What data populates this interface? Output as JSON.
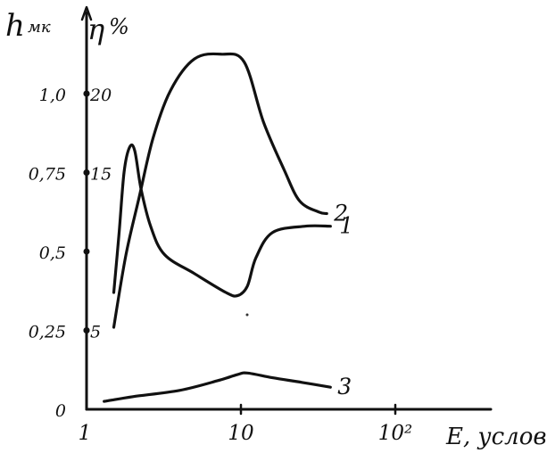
{
  "chart_data": {
    "type": "line",
    "x_scale": "log",
    "xlabel": "E, услов",
    "xlim": [
      1,
      200
    ],
    "x_ticks": [
      "1",
      "10",
      "10²"
    ],
    "left_axis": {
      "symbol": "h",
      "unit": "мк",
      "ylim": [
        0,
        1.25
      ],
      "ticks": [
        "0",
        "0,25",
        "0,5",
        "0,75",
        "1,0"
      ]
    },
    "right_axis": {
      "symbol": "η",
      "unit": "%",
      "ylim": [
        0,
        25
      ],
      "ticks": [
        "5",
        "15",
        "20"
      ]
    },
    "grid": false,
    "series": [
      {
        "name": "1",
        "axis": "h",
        "points": [
          [
            1.5,
            0.37
          ],
          [
            1.62,
            0.55
          ],
          [
            1.75,
            0.75
          ],
          [
            1.9,
            0.83
          ],
          [
            2.05,
            0.82
          ],
          [
            2.25,
            0.7
          ],
          [
            2.6,
            0.58
          ],
          [
            3.2,
            0.49
          ],
          [
            5,
            0.43
          ],
          [
            8,
            0.37
          ],
          [
            9.5,
            0.36
          ],
          [
            11,
            0.39
          ],
          [
            12.5,
            0.48
          ],
          [
            16,
            0.56
          ],
          [
            26,
            0.58
          ],
          [
            38,
            0.58
          ]
        ]
      },
      {
        "name": "2",
        "axis": "η",
        "points": [
          [
            1.5,
            5.2
          ],
          [
            1.8,
            9.8
          ],
          [
            2.2,
            13.5
          ],
          [
            2.7,
            17.2
          ],
          [
            3.5,
            20.2
          ],
          [
            5,
            22.2
          ],
          [
            7.5,
            22.5
          ],
          [
            10.5,
            22.0
          ],
          [
            14,
            18.2
          ],
          [
            19,
            15.2
          ],
          [
            24,
            13.2
          ],
          [
            32,
            12.5
          ],
          [
            36,
            12.4
          ]
        ]
      },
      {
        "name": "3",
        "axis": "h",
        "points": [
          [
            1.3,
            0.025
          ],
          [
            2,
            0.04
          ],
          [
            4,
            0.06
          ],
          [
            7,
            0.09
          ],
          [
            9.5,
            0.11
          ],
          [
            11,
            0.115
          ],
          [
            16,
            0.1
          ],
          [
            25,
            0.085
          ],
          [
            38,
            0.07
          ]
        ]
      }
    ],
    "curve_labels": [
      "1",
      "2",
      "3"
    ]
  }
}
